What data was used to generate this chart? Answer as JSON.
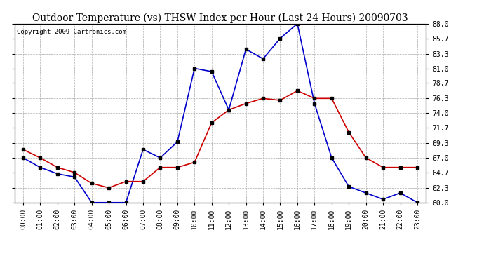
{
  "title": "Outdoor Temperature (vs) THSW Index per Hour (Last 24 Hours) 20090703",
  "copyright": "Copyright 2009 Cartronics.com",
  "hours": [
    "00:00",
    "01:00",
    "02:00",
    "03:00",
    "04:00",
    "05:00",
    "06:00",
    "07:00",
    "08:00",
    "09:00",
    "10:00",
    "11:00",
    "12:00",
    "13:00",
    "14:00",
    "15:00",
    "16:00",
    "17:00",
    "18:00",
    "19:00",
    "20:00",
    "21:00",
    "22:00",
    "23:00"
  ],
  "temp": [
    68.3,
    67.0,
    65.5,
    64.7,
    63.0,
    62.3,
    63.3,
    63.3,
    65.5,
    65.5,
    66.3,
    72.5,
    74.5,
    75.5,
    76.3,
    76.0,
    77.5,
    76.3,
    76.3,
    71.0,
    67.0,
    65.5,
    65.5,
    65.5
  ],
  "thsw": [
    67.0,
    65.5,
    64.5,
    64.0,
    60.0,
    60.0,
    60.0,
    68.3,
    67.0,
    69.5,
    81.0,
    80.5,
    74.5,
    84.0,
    82.5,
    85.7,
    88.0,
    75.5,
    67.0,
    62.5,
    61.5,
    60.5,
    61.5,
    60.0
  ],
  "ylim_min": 60.0,
  "ylim_max": 88.0,
  "yticks": [
    60.0,
    62.3,
    64.7,
    67.0,
    69.3,
    71.7,
    74.0,
    76.3,
    78.7,
    81.0,
    83.3,
    85.7,
    88.0
  ],
  "temp_color": "#cc0000",
  "thsw_color": "#0000cc",
  "bg_color": "#ffffff",
  "plot_bg_color": "#ffffff",
  "grid_color": "#aaaaaa",
  "title_color": "#000000",
  "title_fontsize": 10,
  "copyright_fontsize": 6.5,
  "tick_fontsize": 7,
  "marker": "s",
  "marker_size": 2.5,
  "marker_color": "#000000",
  "line_width": 1.2
}
